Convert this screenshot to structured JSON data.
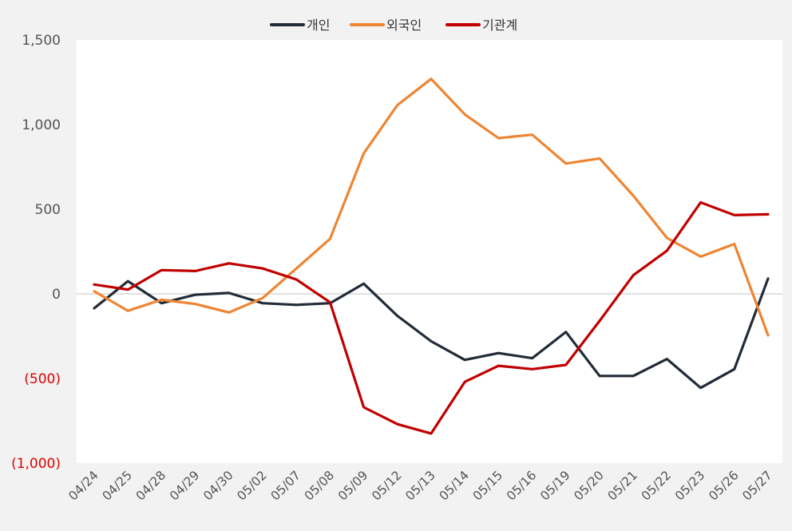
{
  "chart_data": {
    "type": "line",
    "title": "",
    "xlabel": "",
    "ylabel": "",
    "ylim": [
      -1000,
      1500
    ],
    "y_ticks": [
      1500,
      1000,
      500,
      0,
      -500,
      -1000
    ],
    "y_tick_labels": [
      "1,500",
      "1,000",
      "500",
      "0",
      "(500)",
      "(1,000)"
    ],
    "negative_label_color": "#e00000",
    "legend_position": "top-center",
    "categories": [
      "04/24",
      "04/25",
      "04/28",
      "04/29",
      "04/30",
      "05/02",
      "05/07",
      "05/08",
      "05/09",
      "05/12",
      "05/13",
      "05/14",
      "05/15",
      "05/16",
      "05/19",
      "05/20",
      "05/21",
      "05/22",
      "05/23",
      "05/26",
      "05/27"
    ],
    "series": [
      {
        "name": "개인",
        "color": "#222b38",
        "values": [
          -85,
          75,
          -55,
          -5,
          5,
          -55,
          -65,
          -55,
          60,
          -130,
          -280,
          -390,
          -350,
          -380,
          -225,
          -485,
          -485,
          -385,
          -555,
          -445,
          90
        ]
      },
      {
        "name": "외국인",
        "color": "#ee8533",
        "values": [
          15,
          -100,
          -35,
          -60,
          -110,
          -25,
          150,
          325,
          830,
          1115,
          1270,
          1060,
          920,
          940,
          770,
          800,
          580,
          330,
          220,
          295,
          -245
        ]
      },
      {
        "name": "기관계",
        "color": "#c00000",
        "values": [
          55,
          25,
          140,
          135,
          180,
          150,
          85,
          -50,
          -670,
          -770,
          -825,
          -520,
          -425,
          -445,
          -420,
          -160,
          110,
          255,
          540,
          465,
          470
        ]
      }
    ]
  }
}
